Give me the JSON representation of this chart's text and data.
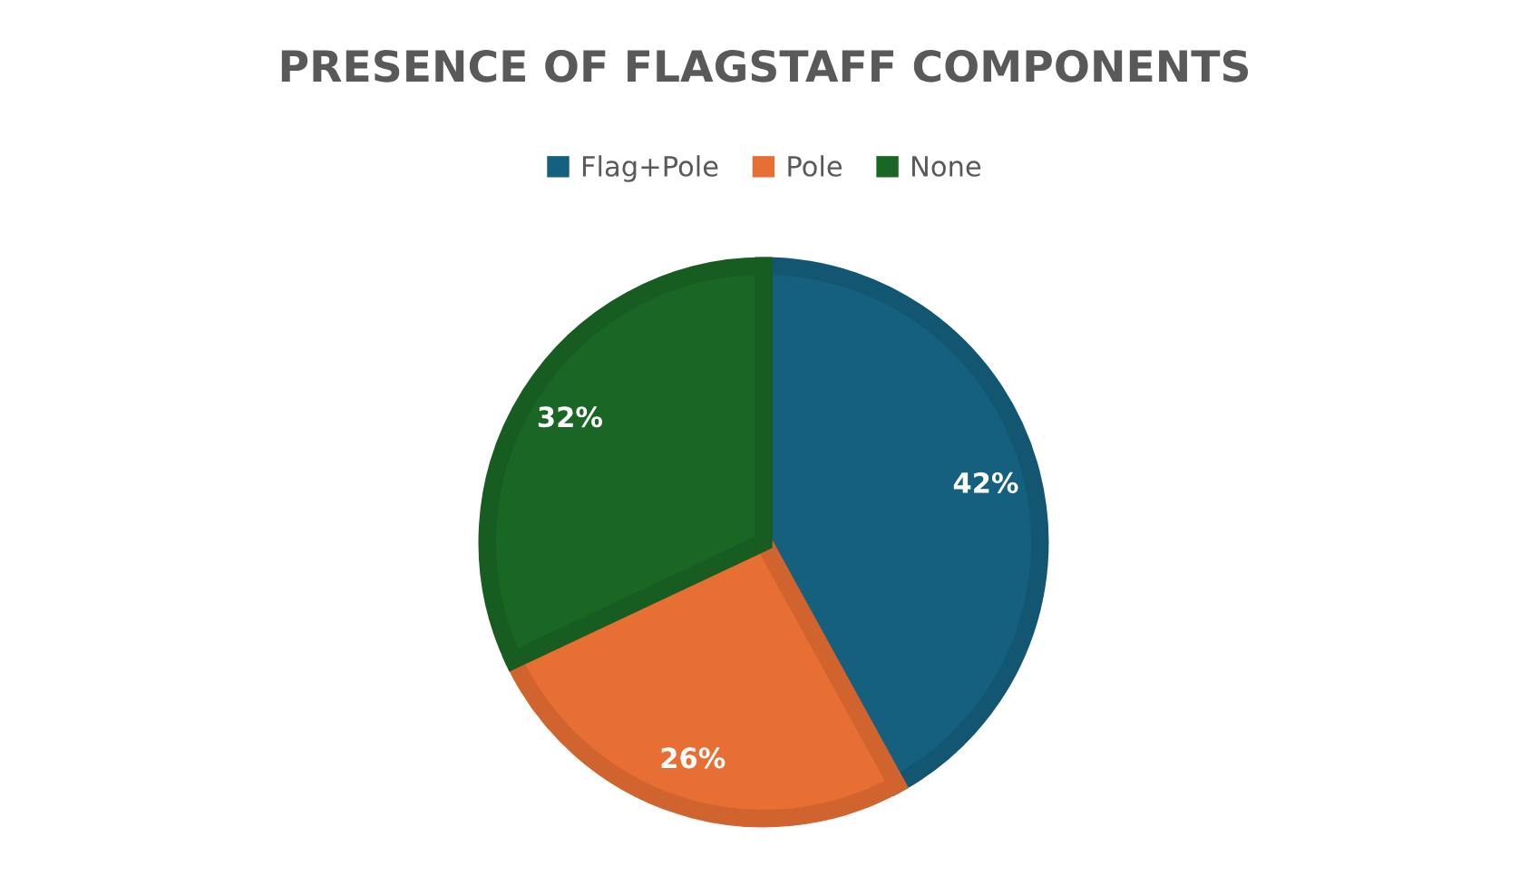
{
  "chart_data": {
    "type": "pie",
    "title": "PRESENCE OF FLAGSTAFF COMPONENTS",
    "categories": [
      "Flag+Pole",
      "Pole",
      "None"
    ],
    "values": [
      42,
      26,
      32
    ],
    "colors": [
      "#15607f",
      "#e86f33",
      "#1a6625"
    ],
    "value_labels": [
      "42%",
      "26%",
      "32%"
    ],
    "legend": "top"
  }
}
